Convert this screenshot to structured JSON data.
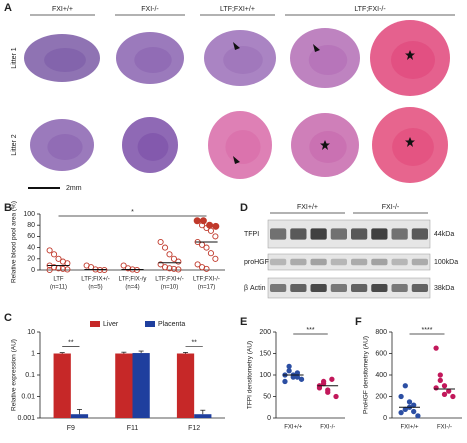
{
  "panel_a": {
    "letter": "A",
    "columns": [
      "FXI+/+",
      "FXI-/-",
      "LTF;FXI+/+",
      "LTF;FXI-/-"
    ],
    "rows": [
      "Litter 1",
      "Litter 2"
    ],
    "scale_bar": "2mm"
  },
  "panel_d": {
    "letter": "D",
    "groups": [
      "FXI+/+",
      "FXI-/-"
    ],
    "bands": [
      "TFPI",
      "proHGF",
      "β Actin"
    ],
    "sizes": [
      "44kDa",
      "100kDa",
      "38kDa"
    ]
  },
  "chart_data": [
    {
      "type": "strip",
      "letter": "B",
      "ylabel": "Relative blood pool area (%)",
      "categories": [
        "LTF",
        "LTF;FIX+/-",
        "LTF;FIX-/y",
        "LTF;FXI+/-",
        "LTF;FXI-/-"
      ],
      "category_notes": [
        "(n=11)",
        "(n=5)",
        "(n=4)",
        "(n=10)",
        "(n=17)"
      ],
      "points": [
        [
          35,
          28,
          20,
          15,
          12,
          8,
          5,
          3,
          2,
          1,
          0
        ],
        [
          8,
          5,
          1,
          0,
          0
        ],
        [
          8,
          3,
          1,
          0
        ],
        [
          50,
          40,
          28,
          20,
          15,
          10,
          5,
          3,
          2,
          1
        ],
        [
          88,
          80,
          75,
          70,
          60,
          50,
          45,
          40,
          30,
          20,
          10,
          5,
          2
        ]
      ],
      "filled_points": [
        [],
        [],
        [],
        [],
        [
          88,
          88,
          80,
          78
        ]
      ],
      "means": [
        8,
        1,
        1,
        13,
        50
      ],
      "color": "#c0392b",
      "ylim": [
        0,
        100
      ],
      "yticks": [
        0,
        20,
        40,
        60,
        80,
        100
      ],
      "significance": "*"
    },
    {
      "type": "bar",
      "letter": "C",
      "ylabel": "Relative expression (AU)",
      "log_scale": true,
      "categories": [
        "F9",
        "F11",
        "F12"
      ],
      "series": [
        {
          "name": "Liver",
          "color": "#c62828",
          "values": [
            1,
            1,
            1
          ],
          "errors": [
            0.1,
            0.15,
            0.12
          ]
        },
        {
          "name": "Placenta",
          "color": "#1f3f9e",
          "values": [
            0.0015,
            1.05,
            0.0015
          ],
          "errors": [
            0.001,
            0.25,
            0.0008
          ]
        }
      ],
      "significance": [
        "**",
        null,
        "**"
      ],
      "ylim": [
        0.001,
        10
      ],
      "yticks": [
        0.001,
        0.01,
        0.1,
        1,
        10
      ]
    },
    {
      "type": "strip",
      "letter": "E",
      "ylabel": "TFPI densitometry (AU)",
      "categories": [
        "FXI+/+",
        "FXI-/-"
      ],
      "points": [
        [
          100,
          110,
          95,
          105,
          90,
          85,
          120,
          100,
          95
        ],
        [
          75,
          80,
          65,
          90,
          50,
          70,
          85,
          60
        ]
      ],
      "means": [
        100,
        75
      ],
      "colors": [
        "#2c4fa3",
        "#c2185b"
      ],
      "ylim": [
        0,
        200
      ],
      "yticks": [
        0,
        50,
        100,
        150,
        200
      ],
      "significance": "***"
    },
    {
      "type": "strip",
      "letter": "F",
      "ylabel": "ProHGF densitometry (AU)",
      "categories": [
        "FXI+/+",
        "FXI-/-"
      ],
      "points": [
        [
          50,
          80,
          100,
          120,
          20,
          200,
          300,
          150,
          60
        ],
        [
          650,
          400,
          300,
          250,
          200,
          280,
          350,
          220
        ]
      ],
      "means": [
        100,
        270
      ],
      "colors": [
        "#2c4fa3",
        "#c2185b"
      ],
      "ylim": [
        0,
        800
      ],
      "yticks": [
        0,
        200,
        400,
        600,
        800
      ],
      "significance": "****"
    }
  ]
}
